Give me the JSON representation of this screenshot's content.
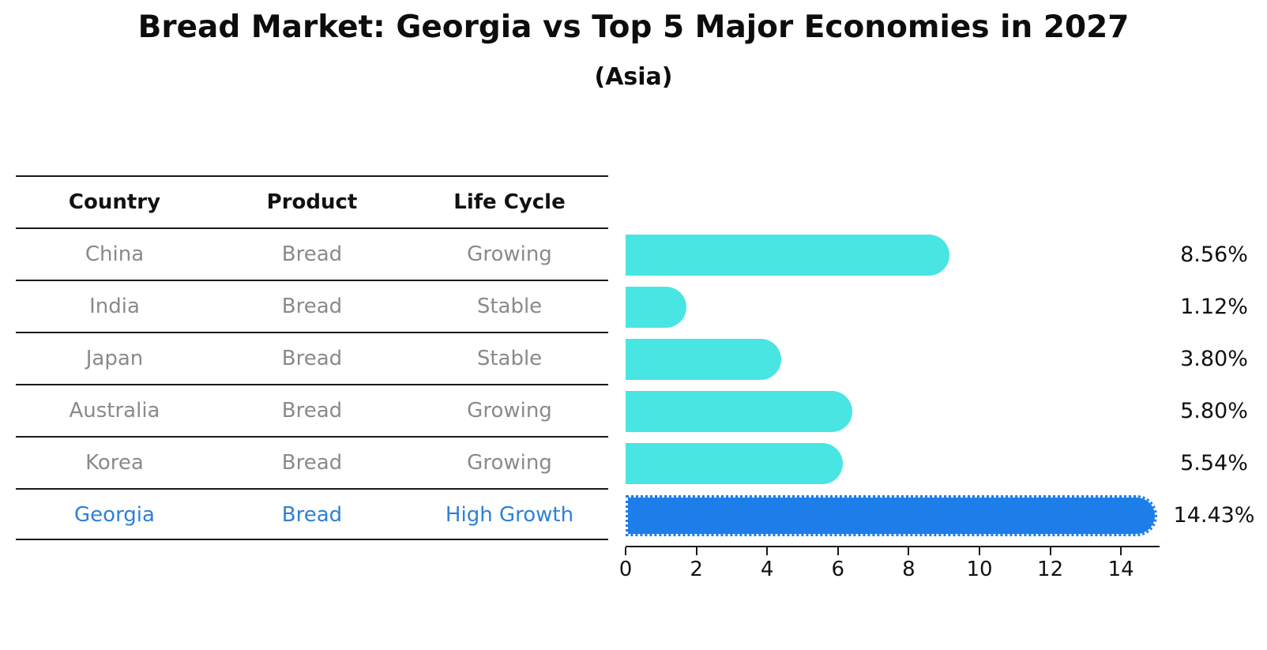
{
  "title": "Bread Market: Georgia vs Top 5 Major Economies in 2027",
  "subtitle": "(Asia)",
  "table": {
    "headers": [
      "Country",
      "Product",
      "Life Cycle"
    ],
    "rows": [
      {
        "country": "China",
        "product": "Bread",
        "life_cycle": "Growing",
        "highlight": false
      },
      {
        "country": "India",
        "product": "Bread",
        "life_cycle": "Stable",
        "highlight": false
      },
      {
        "country": "Japan",
        "product": "Bread",
        "life_cycle": "Stable",
        "highlight": false
      },
      {
        "country": "Australia",
        "product": "Bread",
        "life_cycle": "Growing",
        "highlight": false
      },
      {
        "country": "Korea",
        "product": "Bread",
        "life_cycle": "Growing",
        "highlight": false
      },
      {
        "country": "Georgia",
        "product": "Bread",
        "life_cycle": "High Growth",
        "highlight": true
      }
    ]
  },
  "chart_data": {
    "type": "bar",
    "orientation": "horizontal",
    "title": "Bread Market: Georgia vs Top 5 Major Economies in 2027",
    "subtitle": "(Asia)",
    "categories": [
      "China",
      "India",
      "Japan",
      "Australia",
      "Korea",
      "Georgia"
    ],
    "values": [
      8.56,
      1.12,
      3.8,
      5.8,
      5.54,
      14.43
    ],
    "value_labels": [
      "8.56%",
      "1.12%",
      "3.80%",
      "5.80%",
      "5.54%",
      "14.43%"
    ],
    "x_ticks": [
      0,
      2,
      4,
      6,
      8,
      10,
      12,
      14
    ],
    "xlim": [
      0,
      15.1
    ],
    "grid": false,
    "legend": null,
    "highlight_index": 5,
    "colors": {
      "bar_default": "#49e5e2",
      "bar_highlight": "#1d7ee9",
      "highlight_text": "#2e80d5",
      "text_gray": "#8a8a8a",
      "text_black": "#111111"
    }
  }
}
